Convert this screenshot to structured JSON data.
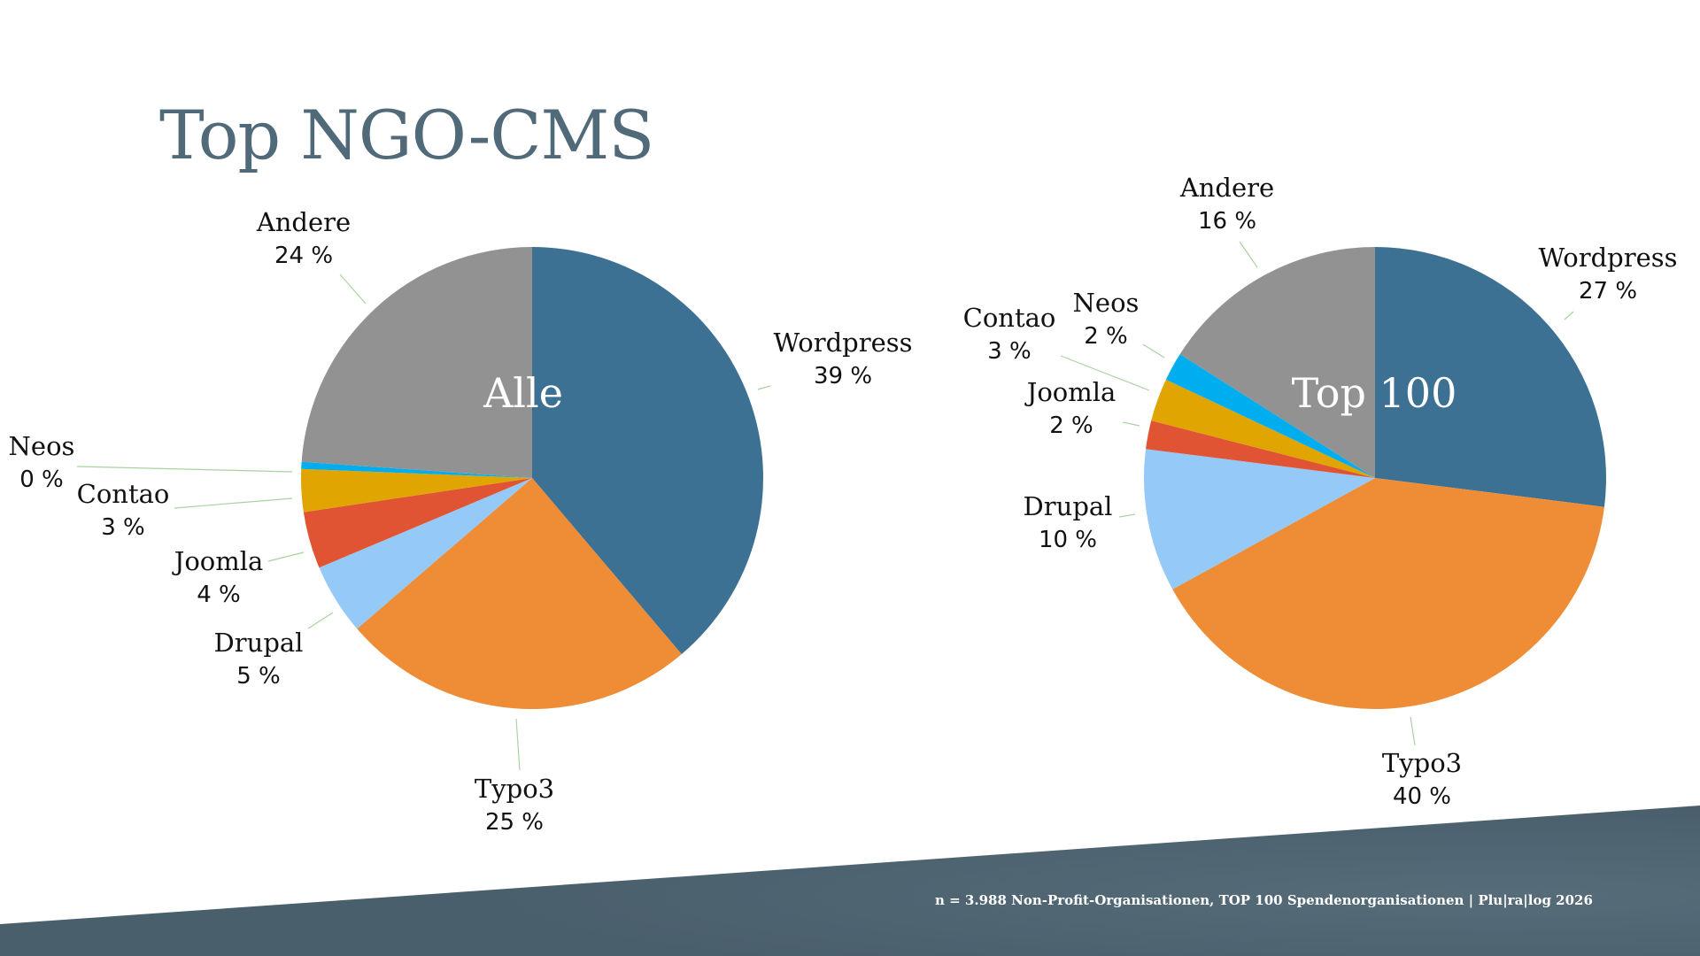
{
  "slide": {
    "title": "Top NGO-CMS",
    "footer": "n = 3.988 Non-Profit-Organisationen, TOP 100 Spendenorganisationen | Plu|ra|log 2026",
    "colors": {
      "title": "#516a7a",
      "band": "#4a5f6c",
      "leader": "#a9d4a0"
    }
  },
  "chart_data": [
    {
      "type": "pie",
      "title": "Alle",
      "categories": [
        "Wordpress",
        "Typo3",
        "Drupal",
        "Joomla",
        "Contao",
        "Neos",
        "Andere"
      ],
      "values": [
        39,
        25,
        5,
        4,
        3,
        0,
        24
      ],
      "labels": [
        "39 %",
        "25 %",
        "5 %",
        "4 %",
        "3 %",
        "0 %",
        "24 %"
      ],
      "colors": [
        "#3d7194",
        "#ee8d35",
        "#95c9f7",
        "#e15433",
        "#e0a500",
        "#00aeef",
        "#929292"
      ],
      "start_angle": 0,
      "direction": "clockwise"
    },
    {
      "type": "pie",
      "title": "Top 100",
      "categories": [
        "Wordpress",
        "Typo3",
        "Drupal",
        "Joomla",
        "Contao",
        "Neos",
        "Andere"
      ],
      "values": [
        27,
        40,
        10,
        2,
        3,
        2,
        16
      ],
      "labels": [
        "27 %",
        "40 %",
        "10 %",
        "2 %",
        "3 %",
        "2 %",
        "16 %"
      ],
      "colors": [
        "#3d7194",
        "#ee8d35",
        "#95c9f7",
        "#e15433",
        "#e0a500",
        "#00aeef",
        "#929292"
      ],
      "start_angle": 0,
      "direction": "clockwise"
    }
  ],
  "labels_left": {
    "wordpress": {
      "name": "Wordpress",
      "pct": "39 %"
    },
    "typo3": {
      "name": "Typo3",
      "pct": "25 %"
    },
    "drupal": {
      "name": "Drupal",
      "pct": "5 %"
    },
    "joomla": {
      "name": "Joomla",
      "pct": "4 %"
    },
    "contao": {
      "name": "Contao",
      "pct": "3 %"
    },
    "neos": {
      "name": "Neos",
      "pct": "0 %"
    },
    "andere": {
      "name": "Andere",
      "pct": "24 %"
    }
  },
  "labels_right": {
    "wordpress": {
      "name": "Wordpress",
      "pct": "27 %"
    },
    "typo3": {
      "name": "Typo3",
      "pct": "40 %"
    },
    "drupal": {
      "name": "Drupal",
      "pct": "10 %"
    },
    "joomla": {
      "name": "Joomla",
      "pct": "2 %"
    },
    "contao": {
      "name": "Contao",
      "pct": "3 %"
    },
    "neos": {
      "name": "Neos",
      "pct": "2 %"
    },
    "andere": {
      "name": "Andere",
      "pct": "16 %"
    }
  },
  "center_labels": {
    "left": "Alle",
    "right": "Top 100"
  }
}
